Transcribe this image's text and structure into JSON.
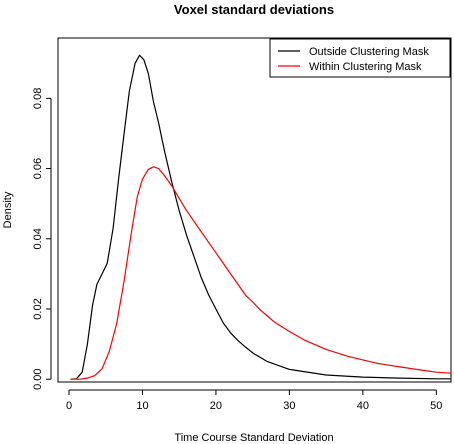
{
  "chart_data": {
    "type": "line",
    "title": "Voxel standard deviations",
    "xlabel": "Time Course Standard Deviation",
    "ylabel": "Density",
    "xlim": [
      -1.5,
      52
    ],
    "ylim": [
      -0.0008,
      0.0972
    ],
    "x_ticks": [
      0,
      10,
      20,
      30,
      40,
      50
    ],
    "y_ticks": [
      0.0,
      0.02,
      0.04,
      0.06,
      0.08
    ],
    "x_tick_labels": [
      "0",
      "10",
      "20",
      "30",
      "40",
      "50"
    ],
    "y_tick_labels": [
      "0.00",
      "0.02",
      "0.04",
      "0.06",
      "0.08"
    ],
    "legend_position": "top-right",
    "series": [
      {
        "name": "Outside Clustering Mask",
        "color": "#000000",
        "x": [
          0.2,
          1.0,
          1.8,
          2.5,
          3.2,
          3.8,
          4.5,
          5.2,
          6.0,
          6.8,
          7.5,
          8.2,
          9.0,
          9.6,
          10.2,
          10.8,
          11.5,
          12.2,
          13.0,
          14.0,
          15.0,
          16.0,
          17.0,
          18.0,
          19.0,
          20.0,
          21.0,
          22.0,
          23.0,
          24.0,
          25.0,
          27.0,
          30.0,
          35.0,
          40.0,
          45.0,
          50.0,
          52.0
        ],
        "y": [
          0.0,
          0.0001,
          0.002,
          0.01,
          0.021,
          0.027,
          0.03,
          0.033,
          0.043,
          0.058,
          0.07,
          0.082,
          0.09,
          0.0923,
          0.091,
          0.087,
          0.079,
          0.073,
          0.065,
          0.056,
          0.048,
          0.041,
          0.035,
          0.029,
          0.024,
          0.02,
          0.016,
          0.0132,
          0.011,
          0.0092,
          0.0075,
          0.005,
          0.0028,
          0.0012,
          0.0006,
          0.0003,
          0.0001,
          0.0001
        ]
      },
      {
        "name": "Within Clustering Mask",
        "color": "#ff0000",
        "x": [
          0.2,
          1.5,
          2.5,
          3.5,
          4.5,
          5.5,
          6.5,
          7.5,
          8.5,
          9.3,
          10.0,
          10.8,
          11.5,
          12.2,
          13.0,
          14.0,
          15.0,
          16.0,
          17.0,
          18.0,
          19.0,
          20.0,
          21.0,
          22.0,
          23.0,
          24.0,
          25.0,
          26.0,
          27.0,
          28.0,
          30.0,
          32.0,
          35.0,
          38.0,
          40.0,
          42.0,
          45.0,
          48.0,
          50.0,
          52.0
        ],
        "y": [
          0.0,
          0.0,
          0.0003,
          0.001,
          0.003,
          0.008,
          0.016,
          0.028,
          0.042,
          0.052,
          0.057,
          0.0598,
          0.0605,
          0.06,
          0.058,
          0.055,
          0.0515,
          0.048,
          0.045,
          0.042,
          0.039,
          0.036,
          0.033,
          0.03,
          0.027,
          0.024,
          0.022,
          0.0198,
          0.018,
          0.0162,
          0.0136,
          0.0112,
          0.0085,
          0.0065,
          0.0055,
          0.0045,
          0.0035,
          0.0026,
          0.002,
          0.0017
        ]
      }
    ]
  }
}
